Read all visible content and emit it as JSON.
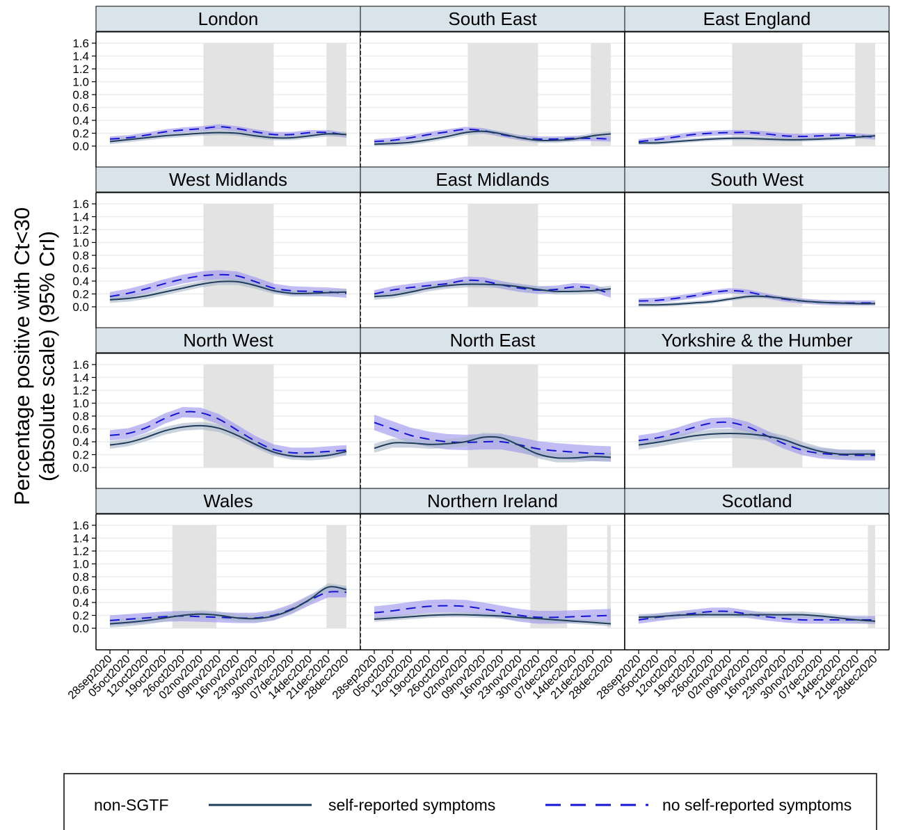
{
  "y_axis_title_lines": [
    "Percentage positive with Ct<30",
    "(absolute scale) (95% CrI)"
  ],
  "legend": {
    "title": "non-SGTF",
    "entries": [
      {
        "label": "self-reported symptoms",
        "style": "solid",
        "color": "#1f3b5a"
      },
      {
        "label": "no self-reported symptoms",
        "style": "dashed",
        "color": "#1414d2"
      }
    ]
  },
  "colors": {
    "strip_fill": "#d9e3ea",
    "symptomatic_line": "#1f3b5a",
    "symptomatic_band": "#a8b8c8",
    "asymptomatic_line": "#1414d2",
    "asymptomatic_band": "#9a90ee",
    "lockdown_shade": "#e3e3e3",
    "grid": "#e9eeee"
  },
  "chart_data": {
    "type": "line",
    "facet_layout": {
      "rows": 4,
      "cols": 3
    },
    "x_tick_labels": [
      "28sep2020",
      "05oct2020",
      "12oct2020",
      "19oct2020",
      "26oct2020",
      "02nov2020",
      "09nov2020",
      "16nov2020",
      "23nov2020",
      "30nov2020",
      "07dec2020",
      "14dec2020",
      "21dec2020",
      "28dec2020"
    ],
    "x_unit": "weeks since 28sep2020",
    "xlim": [
      0,
      13
    ],
    "ylim": [
      0,
      1.6
    ],
    "y_ticks": [
      "0.0",
      "0.2",
      "0.4",
      "0.6",
      "0.8",
      "1.0",
      "1.2",
      "1.4",
      "1.6"
    ],
    "y_tick_values": [
      0,
      0.2,
      0.4,
      0.6,
      0.8,
      1.0,
      1.2,
      1.4,
      1.6
    ],
    "grid": true,
    "legend_position": "bottom",
    "series_names": [
      "self-reported symptoms",
      "no self-reported symptoms"
    ],
    "panels": [
      {
        "region": "London",
        "shaded": [
          [
            5.14,
            9
          ]
        ],
        "shaded_tail": [
          [
            11.9,
            13
          ]
        ],
        "x": [
          0,
          1,
          2,
          3,
          4,
          5,
          6,
          7,
          8,
          9,
          10,
          11,
          12,
          13
        ],
        "symptomatic": [
          0.07,
          0.1,
          0.13,
          0.16,
          0.18,
          0.2,
          0.21,
          0.2,
          0.16,
          0.13,
          0.13,
          0.16,
          0.19,
          0.18
        ],
        "symptomatic_ci": 0.04,
        "asymptomatic": [
          0.11,
          0.13,
          0.17,
          0.22,
          0.25,
          0.27,
          0.3,
          0.27,
          0.22,
          0.18,
          0.18,
          0.21,
          0.21,
          0.17
        ],
        "asymptomatic_ci": 0.04
      },
      {
        "region": "South East",
        "shaded": [
          [
            5.14,
            9
          ]
        ],
        "shaded_tail": [
          [
            11.9,
            13
          ]
        ],
        "x": [
          0,
          1,
          2,
          3,
          4,
          5,
          6,
          7,
          8,
          9,
          10,
          11,
          12,
          13
        ],
        "symptomatic": [
          0.03,
          0.04,
          0.06,
          0.1,
          0.15,
          0.21,
          0.23,
          0.19,
          0.13,
          0.09,
          0.09,
          0.11,
          0.16,
          0.19
        ],
        "symptomatic_ci": 0.04,
        "asymptomatic": [
          0.07,
          0.09,
          0.13,
          0.18,
          0.22,
          0.26,
          0.24,
          0.18,
          0.13,
          0.11,
          0.11,
          0.12,
          0.12,
          0.11
        ],
        "asymptomatic_ci": 0.04
      },
      {
        "region": "East England",
        "shaded": [
          [
            5.14,
            9
          ]
        ],
        "shaded_tail": [
          [
            11.9,
            13
          ]
        ],
        "x": [
          0,
          1,
          2,
          3,
          4,
          5,
          6,
          7,
          8,
          9,
          10,
          11,
          12,
          13
        ],
        "symptomatic": [
          0.05,
          0.05,
          0.07,
          0.09,
          0.11,
          0.12,
          0.12,
          0.11,
          0.1,
          0.1,
          0.11,
          0.12,
          0.14,
          0.16
        ],
        "symptomatic_ci": 0.03,
        "asymptomatic": [
          0.07,
          0.1,
          0.14,
          0.18,
          0.2,
          0.21,
          0.21,
          0.19,
          0.16,
          0.15,
          0.16,
          0.17,
          0.16,
          0.14
        ],
        "asymptomatic_ci": 0.04
      },
      {
        "region": "West Midlands",
        "shaded": [
          [
            5.14,
            9
          ]
        ],
        "shaded_tail": [],
        "x": [
          0,
          1,
          2,
          3,
          4,
          5,
          6,
          7,
          8,
          9,
          10,
          11,
          12,
          13
        ],
        "symptomatic": [
          0.11,
          0.13,
          0.17,
          0.23,
          0.29,
          0.35,
          0.39,
          0.39,
          0.33,
          0.25,
          0.21,
          0.21,
          0.22,
          0.23
        ],
        "symptomatic_ci": 0.05,
        "asymptomatic": [
          0.16,
          0.21,
          0.28,
          0.36,
          0.43,
          0.48,
          0.5,
          0.48,
          0.39,
          0.29,
          0.25,
          0.24,
          0.23,
          0.21
        ],
        "asymptomatic_ci": 0.07
      },
      {
        "region": "East Midlands",
        "shaded": [
          [
            5.14,
            9
          ]
        ],
        "shaded_tail": [],
        "x": [
          0,
          1,
          2,
          3,
          4,
          5,
          6,
          7,
          8,
          9,
          10,
          11,
          12,
          13
        ],
        "symptomatic": [
          0.16,
          0.18,
          0.23,
          0.29,
          0.33,
          0.35,
          0.35,
          0.34,
          0.31,
          0.27,
          0.24,
          0.24,
          0.25,
          0.28
        ],
        "symptomatic_ci": 0.05,
        "asymptomatic": [
          0.2,
          0.26,
          0.3,
          0.33,
          0.36,
          0.41,
          0.4,
          0.34,
          0.29,
          0.26,
          0.27,
          0.31,
          0.29,
          0.2
        ],
        "asymptomatic_ci": 0.06
      },
      {
        "region": "South West",
        "shaded": [
          [
            5.14,
            9
          ]
        ],
        "shaded_tail": [],
        "x": [
          0,
          1,
          2,
          3,
          4,
          5,
          6,
          7,
          8,
          9,
          10,
          11,
          12,
          13
        ],
        "symptomatic": [
          0.03,
          0.03,
          0.04,
          0.06,
          0.08,
          0.12,
          0.16,
          0.16,
          0.13,
          0.09,
          0.07,
          0.06,
          0.05,
          0.05
        ],
        "symptomatic_ci": 0.03,
        "asymptomatic": [
          0.09,
          0.1,
          0.13,
          0.17,
          0.22,
          0.25,
          0.23,
          0.17,
          0.12,
          0.09,
          0.07,
          0.06,
          0.06,
          0.06
        ],
        "asymptomatic_ci": 0.04
      },
      {
        "region": "North West",
        "shaded": [
          [
            5.14,
            9
          ]
        ],
        "shaded_tail": [],
        "x": [
          0,
          1,
          2,
          3,
          4,
          5,
          6,
          7,
          8,
          9,
          10,
          11,
          12,
          13
        ],
        "symptomatic": [
          0.35,
          0.39,
          0.47,
          0.57,
          0.63,
          0.65,
          0.61,
          0.5,
          0.36,
          0.24,
          0.18,
          0.17,
          0.19,
          0.25
        ],
        "symptomatic_ci": 0.06,
        "asymptomatic": [
          0.5,
          0.53,
          0.62,
          0.76,
          0.86,
          0.85,
          0.75,
          0.58,
          0.41,
          0.28,
          0.23,
          0.23,
          0.25,
          0.27
        ],
        "asymptomatic_ci": 0.08
      },
      {
        "region": "North East",
        "shaded": [
          [
            5.14,
            9
          ]
        ],
        "shaded_tail": [],
        "x": [
          0,
          1,
          2,
          3,
          4,
          5,
          6,
          7,
          8,
          9,
          10,
          11,
          12,
          13
        ],
        "symptomatic": [
          0.3,
          0.38,
          0.38,
          0.36,
          0.37,
          0.4,
          0.47,
          0.46,
          0.34,
          0.21,
          0.15,
          0.15,
          0.17,
          0.16
        ],
        "symptomatic_ci": 0.07,
        "asymptomatic": [
          0.7,
          0.6,
          0.5,
          0.44,
          0.4,
          0.39,
          0.4,
          0.4,
          0.35,
          0.29,
          0.26,
          0.24,
          0.22,
          0.21
        ],
        "asymptomatic_ci": 0.12
      },
      {
        "region": "Yorkshire & the Humber",
        "shaded": [
          [
            5.14,
            9
          ]
        ],
        "shaded_tail": [],
        "x": [
          0,
          1,
          2,
          3,
          4,
          5,
          6,
          7,
          8,
          9,
          10,
          11,
          12,
          13
        ],
        "symptomatic": [
          0.35,
          0.39,
          0.44,
          0.49,
          0.52,
          0.53,
          0.52,
          0.49,
          0.43,
          0.33,
          0.25,
          0.21,
          0.21,
          0.21
        ],
        "symptomatic_ci": 0.07,
        "asymptomatic": [
          0.42,
          0.46,
          0.53,
          0.62,
          0.69,
          0.7,
          0.63,
          0.5,
          0.37,
          0.27,
          0.22,
          0.2,
          0.19,
          0.19
        ],
        "asymptomatic_ci": 0.08
      },
      {
        "region": "Wales",
        "shaded": [
          [
            3.43,
            5.86
          ]
        ],
        "shaded_tail": [
          [
            11.9,
            13
          ]
        ],
        "x": [
          0,
          1,
          2,
          3,
          4,
          5,
          6,
          7,
          8,
          9,
          10,
          11,
          12,
          13
        ],
        "symptomatic": [
          0.07,
          0.09,
          0.12,
          0.16,
          0.2,
          0.22,
          0.2,
          0.16,
          0.15,
          0.19,
          0.29,
          0.45,
          0.64,
          0.6
        ],
        "symptomatic_ci": 0.06,
        "asymptomatic": [
          0.12,
          0.14,
          0.16,
          0.18,
          0.19,
          0.18,
          0.17,
          0.16,
          0.16,
          0.2,
          0.3,
          0.44,
          0.56,
          0.56
        ],
        "asymptomatic_ci": 0.08
      },
      {
        "region": "Northern Ireland",
        "shaded": [
          [
            8.57,
            10.6
          ]
        ],
        "shaded_tail": [
          [
            12.8,
            13
          ]
        ],
        "x": [
          0,
          1,
          2,
          3,
          4,
          5,
          6,
          7,
          8,
          9,
          10,
          11,
          12,
          13
        ],
        "symptomatic": [
          0.14,
          0.16,
          0.18,
          0.2,
          0.21,
          0.21,
          0.2,
          0.19,
          0.17,
          0.15,
          0.13,
          0.11,
          0.09,
          0.07
        ],
        "symptomatic_ci": 0.04,
        "asymptomatic": [
          0.24,
          0.27,
          0.31,
          0.34,
          0.35,
          0.34,
          0.3,
          0.25,
          0.2,
          0.17,
          0.17,
          0.18,
          0.19,
          0.2
        ],
        "asymptomatic_ci": 0.1
      },
      {
        "region": "Scotland",
        "shaded": [],
        "shaded_tail": [
          [
            12.6,
            13
          ]
        ],
        "x": [
          0,
          1,
          2,
          3,
          4,
          5,
          6,
          7,
          8,
          9,
          10,
          11,
          12,
          13
        ],
        "symptomatic": [
          0.17,
          0.18,
          0.2,
          0.21,
          0.21,
          0.21,
          0.21,
          0.21,
          0.21,
          0.21,
          0.19,
          0.16,
          0.13,
          0.11
        ],
        "symptomatic_ci": 0.05,
        "asymptomatic": [
          0.13,
          0.17,
          0.2,
          0.23,
          0.26,
          0.26,
          0.22,
          0.18,
          0.15,
          0.13,
          0.13,
          0.13,
          0.13,
          0.13
        ],
        "asymptomatic_ci": 0.06
      }
    ]
  }
}
